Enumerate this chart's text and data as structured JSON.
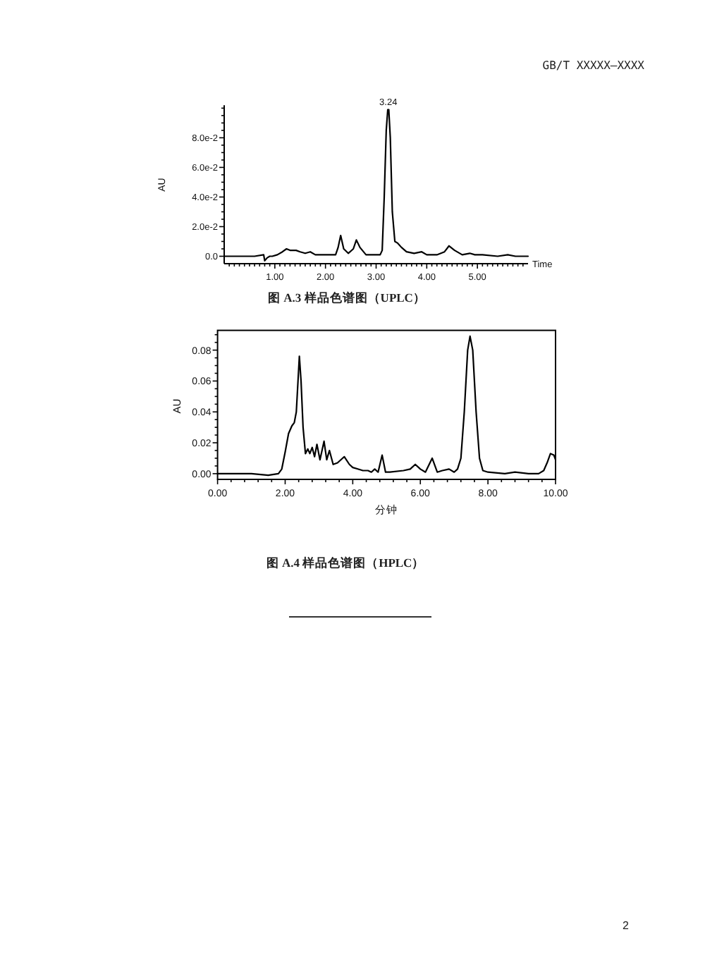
{
  "chart_data": [
    {
      "type": "line",
      "title": "图 A.3 样品色谱图（UPLC）",
      "xlabel": "Time",
      "ylabel": "AU",
      "annotations": [
        {
          "text": "3.24",
          "x": 3.24,
          "y": 0.1
        },
        "GB/T XXXXX—XXXX"
      ],
      "xlim": [
        0,
        6
      ],
      "ylim": [
        -0.005,
        0.102
      ],
      "xticks": [
        {
          "value": 0.1,
          "label": null
        },
        {
          "value": 0.2,
          "label": null
        },
        {
          "value": 0.3,
          "label": null
        },
        {
          "value": 0.4,
          "label": null
        },
        {
          "value": 0.5,
          "label": null
        },
        {
          "value": 0.6,
          "label": null
        },
        {
          "value": 0.7,
          "label": null
        },
        {
          "value": 0.8,
          "label": null
        },
        {
          "value": 0.9,
          "label": null
        },
        {
          "value": 1,
          "label": "1.00"
        },
        {
          "value": 1.1,
          "label": null
        },
        {
          "value": 1.2,
          "label": null
        },
        {
          "value": 1.3,
          "label": null
        },
        {
          "value": 1.4,
          "label": null
        },
        {
          "value": 1.5,
          "label": null
        },
        {
          "value": 1.6,
          "label": null
        },
        {
          "value": 1.7,
          "label": null
        },
        {
          "value": 1.8,
          "label": null
        },
        {
          "value": 1.9,
          "label": null
        },
        {
          "value": 2,
          "label": "2.00"
        },
        {
          "value": 2.1,
          "label": null
        },
        {
          "value": 2.2,
          "label": null
        },
        {
          "value": 2.3,
          "label": null
        },
        {
          "value": 2.4,
          "label": null
        },
        {
          "value": 2.5,
          "label": null
        },
        {
          "value": 2.6,
          "label": null
        },
        {
          "value": 2.7,
          "label": null
        },
        {
          "value": 2.8,
          "label": null
        },
        {
          "value": 2.9,
          "label": null
        },
        {
          "value": 3,
          "label": "3.00"
        },
        {
          "value": 3.1,
          "label": null
        },
        {
          "value": 3.2,
          "label": null
        },
        {
          "value": 3.3,
          "label": null
        },
        {
          "value": 3.4,
          "label": null
        },
        {
          "value": 3.5,
          "label": null
        },
        {
          "value": 3.6,
          "label": null
        },
        {
          "value": 3.7,
          "label": null
        },
        {
          "value": 3.8,
          "label": null
        },
        {
          "value": 3.9,
          "label": null
        },
        {
          "value": 4,
          "label": "4.00"
        },
        {
          "value": 4.1,
          "label": null
        },
        {
          "value": 4.2,
          "label": null
        },
        {
          "value": 4.3,
          "label": null
        },
        {
          "value": 4.4,
          "label": null
        },
        {
          "value": 4.5,
          "label": null
        },
        {
          "value": 4.6,
          "label": null
        },
        {
          "value": 4.7,
          "label": null
        },
        {
          "value": 4.8,
          "label": null
        },
        {
          "value": 4.9,
          "label": null
        },
        {
          "value": 5,
          "label": "5.00"
        },
        {
          "value": 5.1,
          "label": null
        },
        {
          "value": 5.2,
          "label": null
        },
        {
          "value": 5.3,
          "label": null
        },
        {
          "value": 5.4,
          "label": null
        },
        {
          "value": 5.5,
          "label": null
        },
        {
          "value": 5.6,
          "label": null
        },
        {
          "value": 5.7,
          "label": null
        },
        {
          "value": 5.8,
          "label": null
        },
        {
          "value": 5.9,
          "label": null
        }
      ],
      "yticks": [
        {
          "value": 0,
          "label": "0.0"
        },
        {
          "value": 0.005,
          "label": null
        },
        {
          "value": 0.01,
          "label": null
        },
        {
          "value": 0.015,
          "label": null
        },
        {
          "value": 0.02,
          "label": "2.0e-2"
        },
        {
          "value": 0.025,
          "label": null
        },
        {
          "value": 0.03,
          "label": null
        },
        {
          "value": 0.035,
          "label": null
        },
        {
          "value": 0.04,
          "label": "4.0e-2"
        },
        {
          "value": 0.045,
          "label": null
        },
        {
          "value": 0.05,
          "label": null
        },
        {
          "value": 0.055,
          "label": null
        },
        {
          "value": 0.06,
          "label": "6.0e-2"
        },
        {
          "value": 0.065,
          "label": null
        },
        {
          "value": 0.07,
          "label": null
        },
        {
          "value": 0.075,
          "label": null
        },
        {
          "value": 0.08,
          "label": "8.0e-2"
        },
        {
          "value": 0.085,
          "label": null
        },
        {
          "value": 0.09,
          "label": null
        },
        {
          "value": 0.095,
          "label": null
        },
        {
          "value": 0.1,
          "label": null
        }
      ],
      "series": [
        {
          "color": "#000000",
          "x": [
            0,
            0.3,
            0.6,
            0.78,
            0.8,
            0.85,
            0.9,
            0.95,
            1.05,
            1.15,
            1.23,
            1.3,
            1.36,
            1.42,
            1.5,
            1.6,
            1.7,
            1.8,
            1.95,
            2.1,
            2.2,
            2.25,
            2.3,
            2.36,
            2.45,
            2.55,
            2.61,
            2.68,
            2.8,
            2.95,
            3.0,
            3.08,
            3.12,
            3.16,
            3.2,
            3.23,
            3.25,
            3.28,
            3.32,
            3.37,
            3.42,
            3.5,
            3.6,
            3.75,
            3.9,
            4.0,
            4.2,
            4.35,
            4.44,
            4.55,
            4.7,
            4.85,
            4.95,
            5.1,
            5.4,
            5.6,
            5.75,
            6.0
          ],
          "values": [
            0,
            0,
            0,
            0.001,
            -0.003,
            -0.001,
            0,
            0,
            0.001,
            0.003,
            0.005,
            0.004,
            0.004,
            0.004,
            0.003,
            0.002,
            0.003,
            0.001,
            0.001,
            0.001,
            0.001,
            0.006,
            0.014,
            0.005,
            0.002,
            0.005,
            0.011,
            0.006,
            0.001,
            0.001,
            0.001,
            0.001,
            0.004,
            0.04,
            0.085,
            0.099,
            0.099,
            0.08,
            0.03,
            0.01,
            0.009,
            0.006,
            0.003,
            0.002,
            0.003,
            0.001,
            0.001,
            0.003,
            0.007,
            0.004,
            0.001,
            0.002,
            0.001,
            0.001,
            0,
            0.001,
            0,
            0
          ]
        }
      ]
    },
    {
      "type": "line",
      "title": "图 A.4 样品色谱图（HPLC）",
      "xlabel": "分钟",
      "ylabel": "AU",
      "annotations": [
        "2"
      ],
      "xlim": [
        0,
        10
      ],
      "ylim": [
        -0.0037,
        0.0928
      ],
      "xticks": [
        {
          "value": 0,
          "label": "0.00"
        },
        {
          "value": 0.4,
          "label": null
        },
        {
          "value": 0.8,
          "label": null
        },
        {
          "value": 1.2,
          "label": null
        },
        {
          "value": 1.6,
          "label": null
        },
        {
          "value": 2,
          "label": "2.00"
        },
        {
          "value": 2.4,
          "label": null
        },
        {
          "value": 2.8,
          "label": null
        },
        {
          "value": 3.2,
          "label": null
        },
        {
          "value": 3.6,
          "label": null
        },
        {
          "value": 4,
          "label": "4.00"
        },
        {
          "value": 4.4,
          "label": null
        },
        {
          "value": 4.8,
          "label": null
        },
        {
          "value": 5.2,
          "label": null
        },
        {
          "value": 5.6,
          "label": null
        },
        {
          "value": 6,
          "label": "6.00"
        },
        {
          "value": 6.4,
          "label": null
        },
        {
          "value": 6.8,
          "label": null
        },
        {
          "value": 7.2,
          "label": null
        },
        {
          "value": 7.6,
          "label": null
        },
        {
          "value": 8,
          "label": "8.00"
        },
        {
          "value": 8.4,
          "label": null
        },
        {
          "value": 8.8,
          "label": null
        },
        {
          "value": 9.2,
          "label": null
        },
        {
          "value": 9.6,
          "label": null
        },
        {
          "value": 10,
          "label": "10.00"
        }
      ],
      "yticks": [
        {
          "value": 0,
          "label": "0.00"
        },
        {
          "value": 0.005,
          "label": null
        },
        {
          "value": 0.01,
          "label": null
        },
        {
          "value": 0.015,
          "label": null
        },
        {
          "value": 0.02,
          "label": "0.02"
        },
        {
          "value": 0.025,
          "label": null
        },
        {
          "value": 0.03,
          "label": null
        },
        {
          "value": 0.035,
          "label": null
        },
        {
          "value": 0.04,
          "label": "0.04"
        },
        {
          "value": 0.045,
          "label": null
        },
        {
          "value": 0.05,
          "label": null
        },
        {
          "value": 0.055,
          "label": null
        },
        {
          "value": 0.06,
          "label": "0.06"
        },
        {
          "value": 0.065,
          "label": null
        },
        {
          "value": 0.07,
          "label": null
        },
        {
          "value": 0.075,
          "label": null
        },
        {
          "value": 0.08,
          "label": "0.08"
        },
        {
          "value": 0.085,
          "label": null
        },
        {
          "value": 0.09,
          "label": null
        }
      ],
      "series": [
        {
          "color": "#000000",
          "x": [
            0,
            0.5,
            1.0,
            1.5,
            1.8,
            1.9,
            2.0,
            2.1,
            2.2,
            2.27,
            2.33,
            2.38,
            2.42,
            2.47,
            2.53,
            2.6,
            2.67,
            2.73,
            2.8,
            2.87,
            2.94,
            3.03,
            3.15,
            3.23,
            3.31,
            3.42,
            3.55,
            3.75,
            3.9,
            4.0,
            4.15,
            4.3,
            4.45,
            4.55,
            4.65,
            4.75,
            4.87,
            4.97,
            5.1,
            5.5,
            5.7,
            5.85,
            6.0,
            6.15,
            6.35,
            6.5,
            6.65,
            6.85,
            7.0,
            7.1,
            7.2,
            7.3,
            7.4,
            7.47,
            7.55,
            7.65,
            7.75,
            7.85,
            8.0,
            8.5,
            8.8,
            9.2,
            9.5,
            9.65,
            9.75,
            9.85,
            9.95,
            10.0
          ],
          "values": [
            0,
            0,
            0,
            -0.001,
            0,
            0.003,
            0.014,
            0.026,
            0.031,
            0.033,
            0.04,
            0.06,
            0.076,
            0.06,
            0.03,
            0.013,
            0.016,
            0.013,
            0.017,
            0.011,
            0.019,
            0.009,
            0.021,
            0.009,
            0.015,
            0.006,
            0.007,
            0.011,
            0.006,
            0.004,
            0.003,
            0.002,
            0.002,
            0.001,
            0.003,
            0.001,
            0.012,
            0.001,
            0.001,
            0.002,
            0.003,
            0.006,
            0.003,
            0.001,
            0.01,
            0.001,
            0.002,
            0.003,
            0.001,
            0.003,
            0.01,
            0.04,
            0.08,
            0.089,
            0.08,
            0.04,
            0.01,
            0.002,
            0.001,
            0,
            0.001,
            0,
            0,
            0.002,
            0.007,
            0.013,
            0.012,
            0.009
          ]
        }
      ]
    }
  ]
}
